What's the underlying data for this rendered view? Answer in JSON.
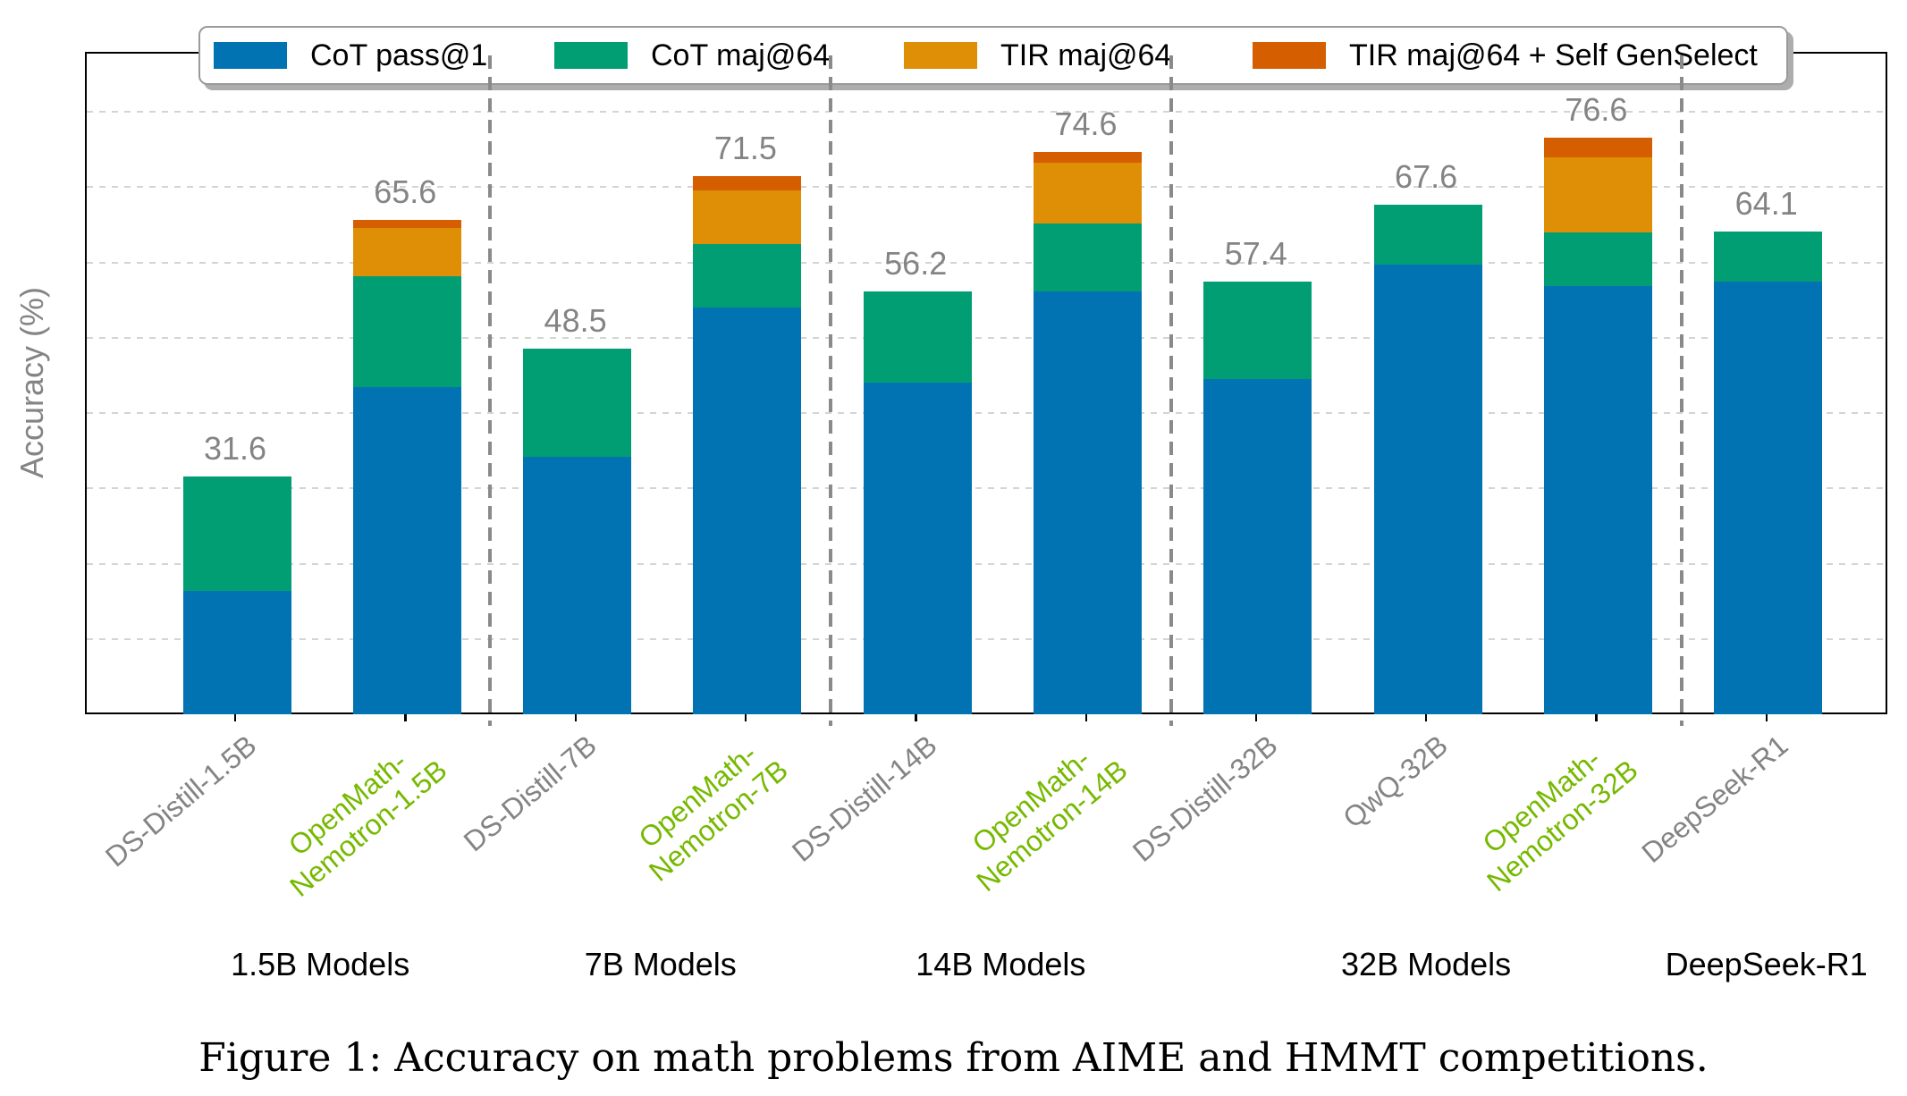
{
  "figure": {
    "caption": "Figure 1: Accuracy on math problems from AIME and HMMT competitions."
  },
  "axis": {
    "ylabel": "Accuracy (%)",
    "yticks": [
      0,
      10,
      20,
      30,
      40,
      50,
      60,
      70,
      80
    ]
  },
  "colors": {
    "gray": "#848484",
    "green": "#76b900",
    "value_label": "#848484"
  },
  "legend": [
    {
      "label": "CoT pass@1",
      "color": "#0173b2"
    },
    {
      "label": "CoT maj@64",
      "color": "#029e73"
    },
    {
      "label": "TIR maj@64",
      "color": "#de8f05"
    },
    {
      "label": "TIR maj@64 + Self GenSelect",
      "color": "#d55e00"
    }
  ],
  "chart_data": {
    "type": "bar",
    "stacked": true,
    "title": "",
    "xlabel": "",
    "ylabel": "Accuracy (%)",
    "ylim": [
      0,
      87.5
    ],
    "grid": true,
    "legend_position": "top",
    "series_names": [
      "CoT pass@1",
      "CoT maj@64",
      "TIR maj@64",
      "TIR maj@64 + Self GenSelect"
    ],
    "bars": [
      {
        "label": "DS-Distill-1.5B",
        "label_lines": [
          "DS-Distill-1.5B"
        ],
        "color_key": "gray",
        "cumulative": [
          16.4,
          31.6
        ],
        "total": 31.6,
        "total_label": "31.6"
      },
      {
        "label": "OpenMath-Nemotron-1.5B",
        "label_lines": [
          "OpenMath-",
          "Nemotron-1.5B"
        ],
        "color_key": "green",
        "cumulative": [
          43.5,
          58.2,
          64.6,
          65.6
        ],
        "total": 65.6,
        "total_label": "65.6"
      },
      {
        "label": "DS-Distill-7B",
        "label_lines": [
          "DS-Distill-7B"
        ],
        "color_key": "gray",
        "cumulative": [
          34.2,
          48.5
        ],
        "total": 48.5,
        "total_label": "48.5"
      },
      {
        "label": "OpenMath-Nemotron-7B",
        "label_lines": [
          "OpenMath-",
          "Nemotron-7B"
        ],
        "color_key": "green",
        "cumulative": [
          54.0,
          62.4,
          69.5,
          71.5
        ],
        "total": 71.5,
        "total_label": "71.5"
      },
      {
        "label": "DS-Distill-14B",
        "label_lines": [
          "DS-Distill-14B"
        ],
        "color_key": "gray",
        "cumulative": [
          44.0,
          56.2
        ],
        "total": 56.2,
        "total_label": "56.2"
      },
      {
        "label": "OpenMath-Nemotron-14B",
        "label_lines": [
          "OpenMath-",
          "Nemotron-14B"
        ],
        "color_key": "green",
        "cumulative": [
          56.2,
          65.2,
          73.2,
          74.6
        ],
        "total": 74.6,
        "total_label": "74.6"
      },
      {
        "label": "DS-Distill-32B",
        "label_lines": [
          "DS-Distill-32B"
        ],
        "color_key": "gray",
        "cumulative": [
          44.5,
          57.4
        ],
        "total": 57.4,
        "total_label": "57.4"
      },
      {
        "label": "QwQ-32B",
        "label_lines": [
          "QwQ-32B"
        ],
        "color_key": "gray",
        "cumulative": [
          59.7,
          67.6
        ],
        "total": 67.6,
        "total_label": "67.6"
      },
      {
        "label": "OpenMath-Nemotron-32B",
        "label_lines": [
          "OpenMath-",
          "Nemotron-32B"
        ],
        "color_key": "green",
        "cumulative": [
          56.8,
          64.0,
          74.0,
          76.6
        ],
        "total": 76.6,
        "total_label": "76.6"
      },
      {
        "label": "DeepSeek-R1",
        "label_lines": [
          "DeepSeek-R1"
        ],
        "color_key": "gray",
        "cumulative": [
          57.4,
          64.1
        ],
        "total": 64.1,
        "total_label": "64.1"
      }
    ],
    "groups": [
      {
        "label": "1.5B Models",
        "bars": [
          0,
          1
        ]
      },
      {
        "label": "7B Models",
        "bars": [
          2,
          3
        ]
      },
      {
        "label": "14B Models",
        "bars": [
          4,
          5
        ]
      },
      {
        "label": "32B Models",
        "bars": [
          6,
          7,
          8
        ]
      },
      {
        "label": "DeepSeek-R1",
        "bars": [
          9
        ]
      }
    ]
  }
}
